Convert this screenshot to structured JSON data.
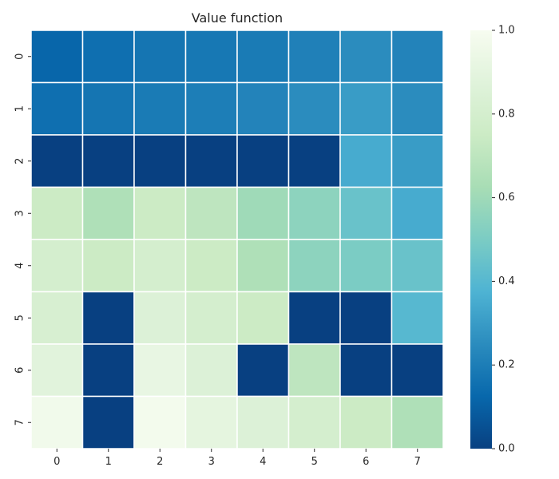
{
  "chart_data": {
    "type": "heatmap",
    "title": "Value function",
    "xlabel": "",
    "ylabel": "",
    "x_categories": [
      "0",
      "1",
      "2",
      "3",
      "4",
      "5",
      "6",
      "7"
    ],
    "y_categories": [
      "0",
      "1",
      "2",
      "3",
      "4",
      "5",
      "6",
      "7"
    ],
    "values": [
      [
        0.12,
        0.15,
        0.17,
        0.18,
        0.19,
        0.21,
        0.25,
        0.22
      ],
      [
        0.15,
        0.17,
        0.19,
        0.2,
        0.22,
        0.25,
        0.3,
        0.25
      ],
      [
        0.0,
        0.0,
        0.0,
        0.0,
        0.0,
        0.0,
        0.35,
        0.3
      ],
      [
        0.75,
        0.65,
        0.75,
        0.7,
        0.6,
        0.55,
        0.45,
        0.35
      ],
      [
        0.8,
        0.75,
        0.8,
        0.75,
        0.65,
        0.55,
        0.5,
        0.45
      ],
      [
        0.82,
        0.0,
        0.85,
        0.8,
        0.75,
        0.0,
        0.0,
        0.4
      ],
      [
        0.88,
        0.0,
        0.92,
        0.85,
        0.0,
        0.7,
        0.0,
        0.0
      ],
      [
        0.97,
        0.0,
        0.98,
        0.9,
        0.85,
        0.8,
        0.75,
        0.65
      ]
    ],
    "vmin": 0.0,
    "vmax": 1.0,
    "colormap": "GnBu_r",
    "colorbar": {
      "ticks": [
        0.0,
        0.2,
        0.4,
        0.6,
        0.8,
        1.0
      ],
      "tick_labels": [
        "0.0",
        "0.2",
        "0.4",
        "0.6",
        "0.8",
        "1.0"
      ]
    },
    "cell_border_color": "#ffffff",
    "colormap_stops": [
      [
        0.0,
        "#084081"
      ],
      [
        0.125,
        "#0868ac"
      ],
      [
        0.25,
        "#2b8cbe"
      ],
      [
        0.375,
        "#4eb3d3"
      ],
      [
        0.5,
        "#7bccc4"
      ],
      [
        0.625,
        "#a8ddb5"
      ],
      [
        0.75,
        "#ccebc5"
      ],
      [
        0.875,
        "#e0f3db"
      ],
      [
        1.0,
        "#f7fcf0"
      ]
    ]
  }
}
